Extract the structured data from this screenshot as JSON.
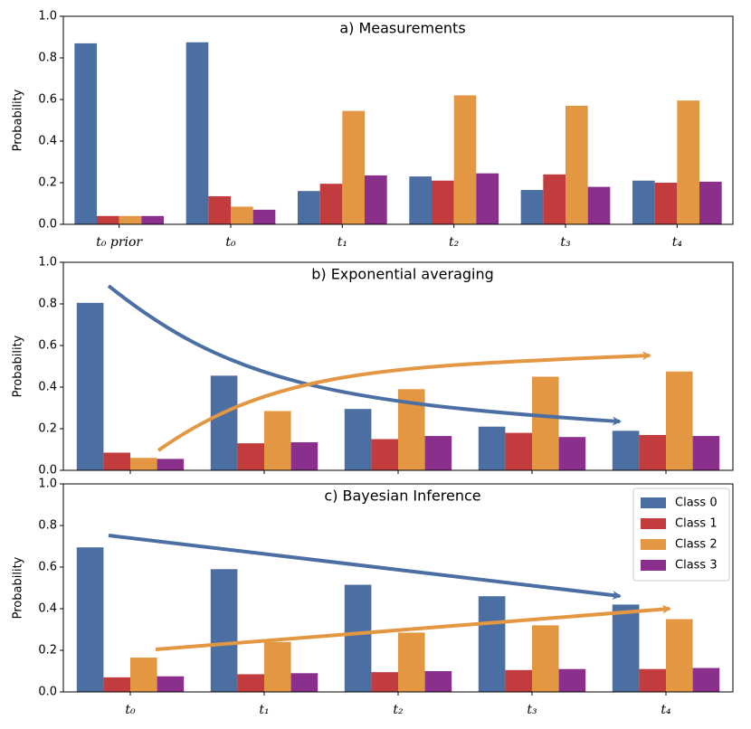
{
  "chart_data": [
    {
      "type": "bar",
      "title": "a) Measurements",
      "ylabel": "Probability",
      "categories": [
        "t₀ prior",
        "t₀",
        "t₁",
        "t₂",
        "t₃",
        "t₄"
      ],
      "series": [
        {
          "color": "#4c6fa3",
          "values": [
            0.87,
            0.875,
            0.16,
            0.23,
            0.165,
            0.21
          ]
        },
        {
          "color": "#c23b3d",
          "values": [
            0.04,
            0.135,
            0.195,
            0.21,
            0.24,
            0.2
          ]
        },
        {
          "color": "#e39743",
          "values": [
            0.04,
            0.085,
            0.545,
            0.62,
            0.57,
            0.595
          ]
        },
        {
          "color": "#8b2f8c",
          "values": [
            0.04,
            0.07,
            0.235,
            0.245,
            0.18,
            0.205
          ]
        }
      ],
      "ylim": [
        0,
        1
      ],
      "yticks": [
        {
          "value": 0,
          "label": "0.0"
        },
        0.2,
        0.4,
        0.6,
        0.8,
        {
          "value": 1,
          "label": "1.0"
        }
      ]
    },
    {
      "type": "bar",
      "title": "b) Exponential averaging",
      "ylabel": "Probability",
      "categories": [
        null,
        null,
        null,
        null,
        null
      ],
      "series": [
        {
          "color": "#4c6fa3",
          "values": [
            0.805,
            0.455,
            0.295,
            0.21,
            0.19
          ]
        },
        {
          "color": "#c23b3d",
          "values": [
            0.085,
            0.13,
            0.15,
            0.18,
            0.17
          ]
        },
        {
          "color": "#e39743",
          "values": [
            0.06,
            0.285,
            0.39,
            0.45,
            0.475
          ]
        },
        {
          "color": "#8b2f8c",
          "values": [
            0.055,
            0.135,
            0.165,
            0.16,
            0.165
          ]
        }
      ],
      "ylim": [
        0,
        1
      ],
      "yticks": [
        {
          "value": 0,
          "label": "0.0"
        },
        0.2,
        0.4,
        0.6,
        0.8,
        {
          "value": 1,
          "label": "1.0"
        }
      ]
    },
    {
      "type": "bar",
      "title": "c) Bayesian Inference",
      "ylabel": "Probability",
      "categories": [
        "t₀",
        "t₁",
        "t₂",
        "t₃",
        "t₄"
      ],
      "series": [
        {
          "name": "Class 0",
          "color": "#4c6fa3",
          "values": [
            0.695,
            0.59,
            0.515,
            0.46,
            0.42
          ]
        },
        {
          "name": "Class 1",
          "color": "#c23b3d",
          "values": [
            0.07,
            0.085,
            0.095,
            0.105,
            0.11
          ]
        },
        {
          "name": "Class 2",
          "color": "#e39743",
          "values": [
            0.165,
            0.24,
            0.285,
            0.32,
            0.35
          ]
        },
        {
          "name": "Class 3",
          "color": "#8b2f8c",
          "values": [
            0.075,
            0.09,
            0.1,
            0.11,
            0.115
          ]
        }
      ],
      "ylim": [
        0,
        1
      ],
      "yticks": [
        {
          "value": 0,
          "label": "0.0"
        },
        0.2,
        0.4,
        0.6,
        0.8,
        {
          "value": 1,
          "label": "1.0"
        }
      ],
      "legend": "upper right"
    }
  ]
}
